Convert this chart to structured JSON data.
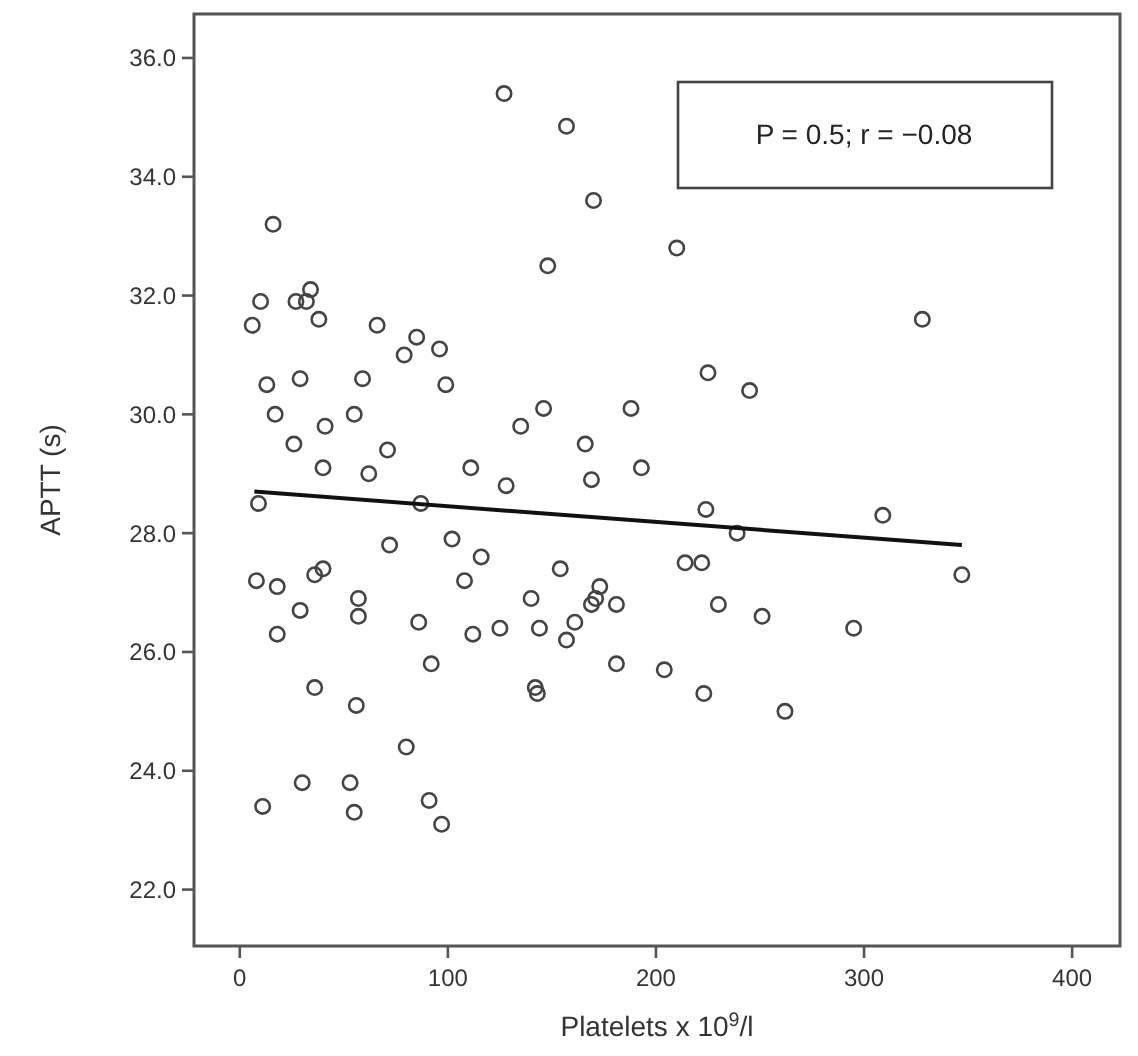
{
  "chart_data": {
    "type": "scatter",
    "xlabel": "Platelets x 10$^{9}$/l",
    "ylabel": "APTT (s)",
    "xlim": [
      -22,
      423
    ],
    "ylim": [
      21.05,
      36.74
    ],
    "xticks": [
      0,
      100,
      200,
      300,
      400
    ],
    "yticks": [
      {
        "value": 22,
        "label": "22.0"
      },
      {
        "value": 24,
        "label": "24.0"
      },
      {
        "value": 26,
        "label": "26.0"
      },
      {
        "value": 28,
        "label": "28.0"
      },
      {
        "value": 30,
        "label": "30.0"
      },
      {
        "value": 32,
        "label": "32.0"
      },
      {
        "value": 34,
        "label": "34.0"
      },
      {
        "value": 36,
        "label": "36.0"
      }
    ],
    "grid": false,
    "annotations": [
      "P = 0.5; r = −0.08"
    ],
    "series": [
      {
        "color": "#444444",
        "marker": "circle",
        "x": [
          127,
          157,
          170,
          16,
          148,
          10,
          27,
          32,
          34,
          6,
          38,
          66,
          85,
          79,
          96,
          99,
          13,
          29,
          59,
          17,
          55,
          41,
          26,
          71,
          40,
          62,
          111,
          128,
          146,
          135,
          166,
          169,
          188,
          193,
          210,
          328,
          225,
          245,
          9,
          87,
          72,
          102,
          116,
          154,
          8,
          18,
          36,
          40,
          57,
          57,
          29,
          18,
          86,
          108,
          112,
          125,
          140,
          144,
          157,
          161,
          169,
          173,
          171,
          181,
          92,
          181,
          142,
          143,
          36,
          56,
          80,
          30,
          53,
          11,
          55,
          91,
          97,
          224,
          309,
          239,
          214,
          222,
          347,
          230,
          251,
          295,
          204,
          223,
          262
        ],
        "values": [
          35.4,
          34.85,
          33.6,
          33.2,
          32.5,
          31.9,
          31.9,
          31.9,
          32.1,
          31.5,
          31.6,
          31.5,
          31.3,
          31.0,
          31.1,
          30.5,
          30.5,
          30.6,
          30.6,
          30.0,
          30.0,
          29.8,
          29.5,
          29.4,
          29.1,
          29.0,
          29.1,
          28.8,
          30.1,
          29.8,
          29.5,
          28.9,
          30.1,
          29.1,
          32.8,
          31.6,
          30.7,
          30.4,
          28.5,
          28.5,
          27.8,
          27.9,
          27.6,
          27.4,
          27.2,
          27.1,
          27.3,
          27.4,
          26.9,
          26.6,
          26.7,
          26.3,
          26.5,
          27.2,
          26.3,
          26.4,
          26.9,
          26.4,
          26.2,
          26.5,
          26.8,
          27.1,
          26.9,
          26.8,
          25.8,
          25.8,
          25.4,
          25.3,
          25.4,
          25.1,
          24.4,
          23.8,
          23.8,
          23.4,
          23.3,
          23.5,
          23.1,
          28.4,
          28.3,
          28.0,
          27.5,
          27.5,
          27.3,
          26.8,
          26.6,
          26.4,
          25.7,
          25.3,
          25.0
        ]
      },
      {
        "type": "line",
        "color": "#111111",
        "marker": "none",
        "line_style": "solid",
        "x": [
          7,
          347
        ],
        "values": [
          28.7,
          27.8
        ]
      }
    ]
  }
}
